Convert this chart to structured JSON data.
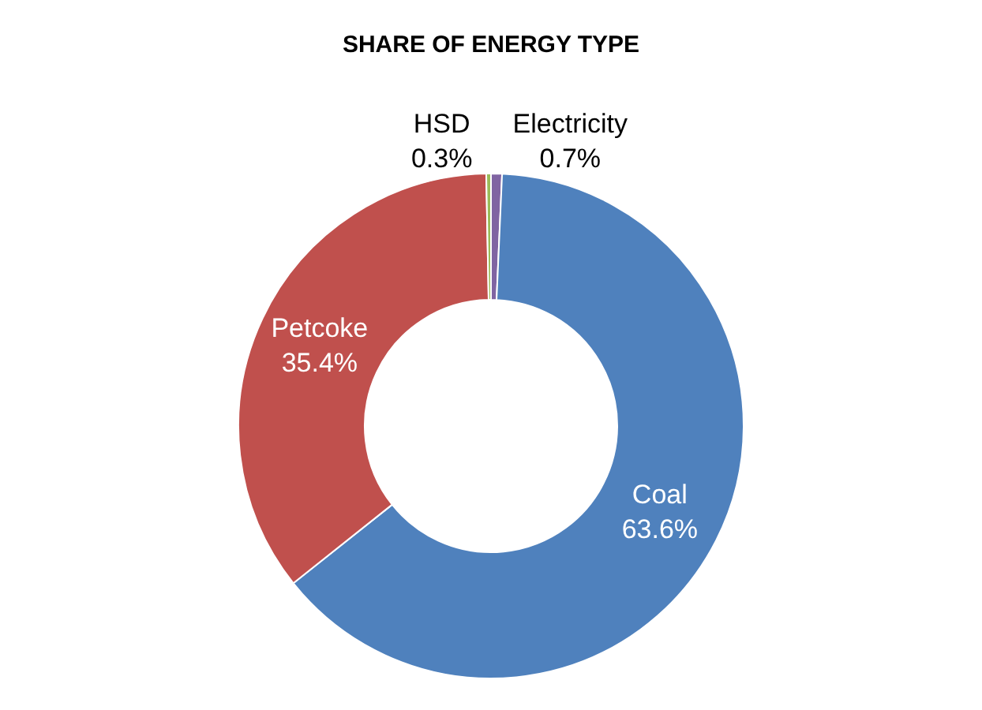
{
  "chart_data": {
    "type": "donut",
    "title": "SHARE OF ENERGY TYPE",
    "categories": [
      "Electricity",
      "Coal",
      "Petcoke",
      "HSD"
    ],
    "values": [
      0.7,
      63.6,
      35.4,
      0.3
    ],
    "value_labels": [
      "0.7%",
      "63.6%",
      "35.4%",
      "0.3%"
    ],
    "colors": [
      "#8064a2",
      "#4f81bd",
      "#c0504d",
      "#9bbb59"
    ],
    "legend": false
  }
}
